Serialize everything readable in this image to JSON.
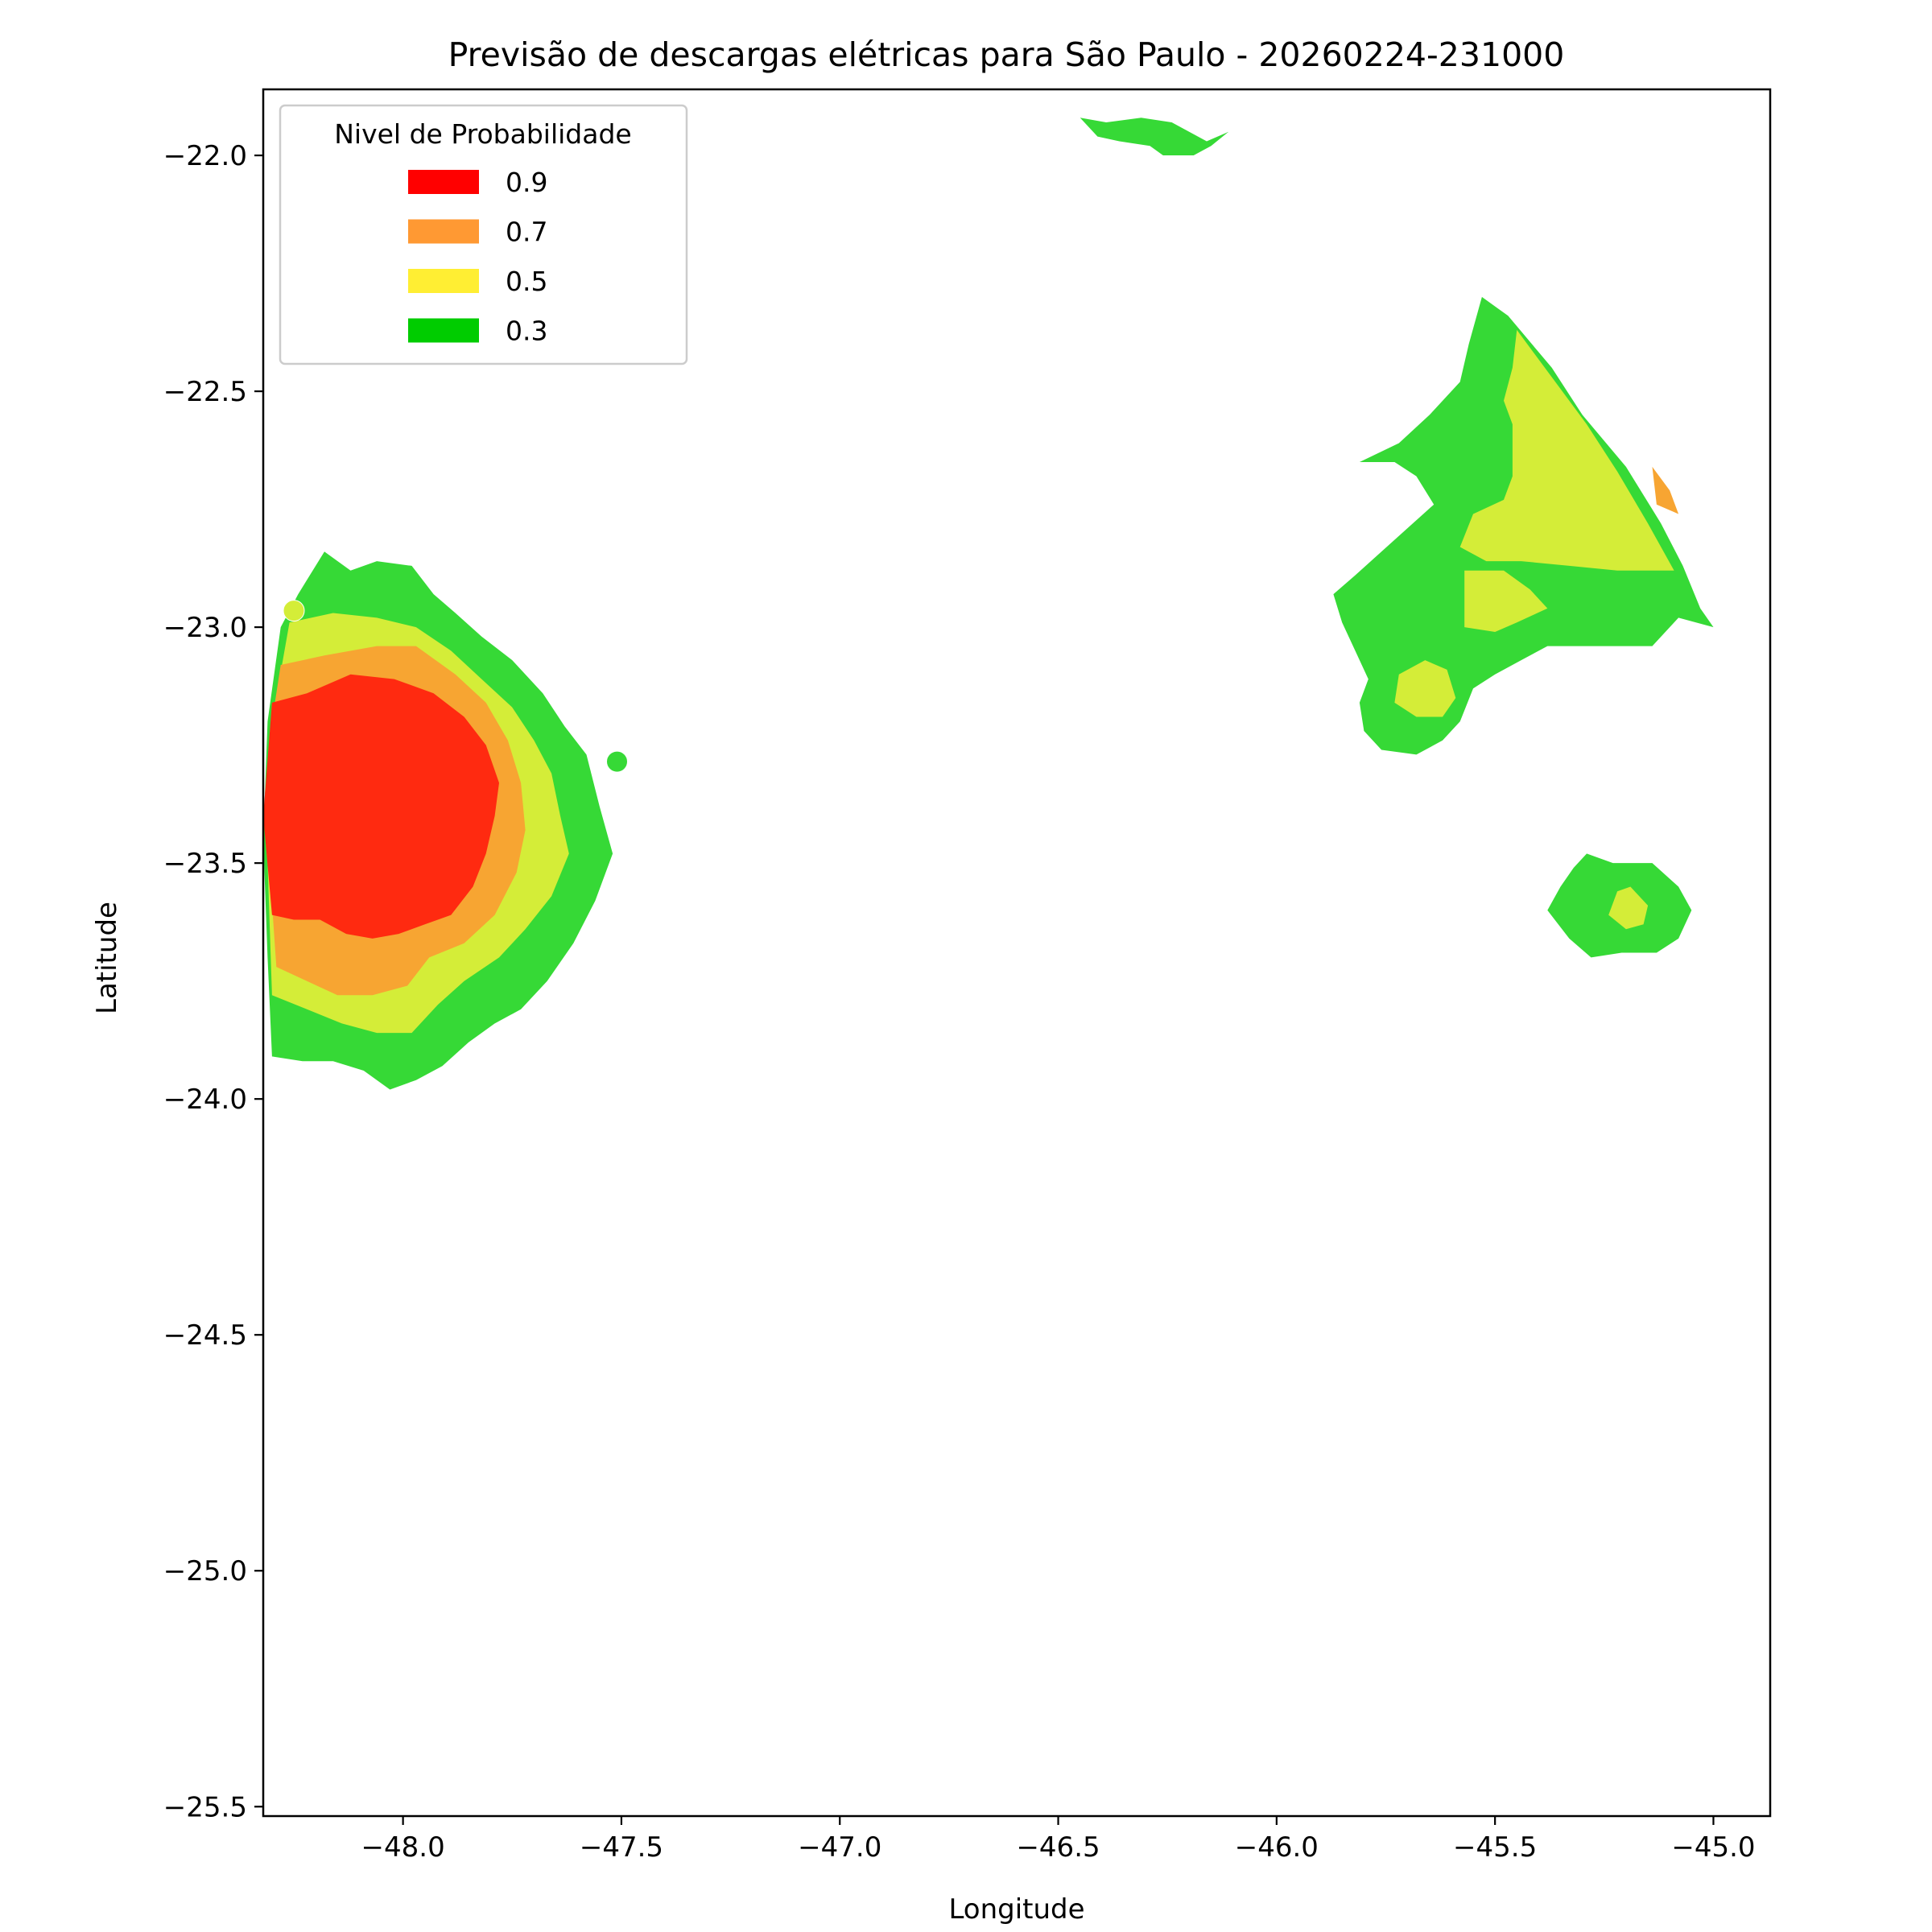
{
  "chart_data": {
    "type": "contourf",
    "title": "Previsão de descargas elétricas para São Paulo - 20260224-231000",
    "xlabel": "Longitude",
    "ylabel": "Latitude",
    "xlim": [
      -48.32,
      -44.87
    ],
    "ylim": [
      -25.52,
      -21.86
    ],
    "xticks": [
      -48.0,
      -47.5,
      -47.0,
      -46.5,
      -46.0,
      -45.5,
      -45.0
    ],
    "xtick_labels": [
      "−48.0",
      "−47.5",
      "−47.0",
      "−46.5",
      "−46.0",
      "−45.5",
      "−45.0"
    ],
    "yticks": [
      -22.0,
      -22.5,
      -23.0,
      -23.5,
      -24.0,
      -24.5,
      -25.0,
      -25.5
    ],
    "ytick_labels": [
      "−22.0",
      "−22.5",
      "−23.0",
      "−23.5",
      "−24.0",
      "−24.5",
      "−25.0",
      "−25.5"
    ],
    "grid": false,
    "legend": {
      "title": "Nivel de Probabilidade",
      "placement": "upper left",
      "entries": [
        {
          "label": "0.9",
          "color": "#ff0000"
        },
        {
          "label": "0.7",
          "color": "#ff9933"
        },
        {
          "label": "0.5",
          "color": "#ffee33"
        },
        {
          "label": "0.3",
          "color": "#00cc00"
        }
      ]
    },
    "fill_colors": {
      "0.3": "#36d936",
      "0.5": "#d4ed38",
      "0.7": "#f7a532",
      "0.9": "#ff2a10"
    },
    "regions": [
      {
        "level": "0.3",
        "points": [
          [
            -48.18,
            -22.84
          ],
          [
            -48.12,
            -22.88
          ],
          [
            -48.06,
            -22.86
          ],
          [
            -47.98,
            -22.87
          ],
          [
            -47.93,
            -22.93
          ],
          [
            -47.88,
            -22.97
          ],
          [
            -47.82,
            -23.02
          ],
          [
            -47.75,
            -23.07
          ],
          [
            -47.68,
            -23.14
          ],
          [
            -47.63,
            -23.21
          ],
          [
            -47.58,
            -23.27
          ],
          [
            -47.55,
            -23.38
          ],
          [
            -47.52,
            -23.48
          ],
          [
            -47.56,
            -23.58
          ],
          [
            -47.61,
            -23.67
          ],
          [
            -47.67,
            -23.75
          ],
          [
            -47.73,
            -23.81
          ],
          [
            -47.79,
            -23.84
          ],
          [
            -47.85,
            -23.88
          ],
          [
            -47.91,
            -23.93
          ],
          [
            -47.97,
            -23.96
          ],
          [
            -48.03,
            -23.98
          ],
          [
            -48.09,
            -23.94
          ],
          [
            -48.16,
            -23.92
          ],
          [
            -48.23,
            -23.92
          ],
          [
            -48.3,
            -23.91
          ],
          [
            -48.31,
            -23.7
          ],
          [
            -48.32,
            -23.45
          ],
          [
            -48.31,
            -23.2
          ],
          [
            -48.28,
            -23.0
          ],
          [
            -48.24,
            -22.93
          ]
        ]
      },
      {
        "level": "0.5",
        "points": [
          [
            -48.26,
            -22.99
          ],
          [
            -48.16,
            -22.97
          ],
          [
            -48.06,
            -22.98
          ],
          [
            -47.97,
            -23.0
          ],
          [
            -47.89,
            -23.05
          ],
          [
            -47.82,
            -23.11
          ],
          [
            -47.75,
            -23.17
          ],
          [
            -47.7,
            -23.24
          ],
          [
            -47.66,
            -23.31
          ],
          [
            -47.64,
            -23.4
          ],
          [
            -47.62,
            -23.48
          ],
          [
            -47.66,
            -23.57
          ],
          [
            -47.72,
            -23.64
          ],
          [
            -47.78,
            -23.7
          ],
          [
            -47.86,
            -23.75
          ],
          [
            -47.92,
            -23.8
          ],
          [
            -47.98,
            -23.86
          ],
          [
            -48.06,
            -23.86
          ],
          [
            -48.14,
            -23.84
          ],
          [
            -48.22,
            -23.81
          ],
          [
            -48.3,
            -23.78
          ],
          [
            -48.31,
            -23.5
          ],
          [
            -48.3,
            -23.2
          ]
        ]
      },
      {
        "level": "0.7",
        "points": [
          [
            -48.28,
            -23.08
          ],
          [
            -48.18,
            -23.06
          ],
          [
            -48.06,
            -23.04
          ],
          [
            -47.97,
            -23.04
          ],
          [
            -47.88,
            -23.1
          ],
          [
            -47.81,
            -23.16
          ],
          [
            -47.76,
            -23.24
          ],
          [
            -47.73,
            -23.33
          ],
          [
            -47.72,
            -23.43
          ],
          [
            -47.74,
            -23.52
          ],
          [
            -47.79,
            -23.61
          ],
          [
            -47.86,
            -23.67
          ],
          [
            -47.94,
            -23.7
          ],
          [
            -47.99,
            -23.76
          ],
          [
            -48.07,
            -23.78
          ],
          [
            -48.15,
            -23.78
          ],
          [
            -48.22,
            -23.75
          ],
          [
            -48.29,
            -23.72
          ],
          [
            -48.31,
            -23.45
          ],
          [
            -48.3,
            -23.2
          ]
        ]
      },
      {
        "level": "0.9",
        "points": [
          [
            -48.3,
            -23.16
          ],
          [
            -48.22,
            -23.14
          ],
          [
            -48.12,
            -23.1
          ],
          [
            -48.02,
            -23.11
          ],
          [
            -47.93,
            -23.14
          ],
          [
            -47.86,
            -23.19
          ],
          [
            -47.81,
            -23.25
          ],
          [
            -47.78,
            -23.33
          ],
          [
            -47.79,
            -23.4
          ],
          [
            -47.81,
            -23.48
          ],
          [
            -47.84,
            -23.55
          ],
          [
            -47.89,
            -23.61
          ],
          [
            -47.95,
            -23.63
          ],
          [
            -48.01,
            -23.65
          ],
          [
            -48.07,
            -23.66
          ],
          [
            -48.13,
            -23.65
          ],
          [
            -48.19,
            -23.62
          ],
          [
            -48.25,
            -23.62
          ],
          [
            -48.3,
            -23.61
          ],
          [
            -48.32,
            -23.4
          ]
        ]
      },
      {
        "level": "0.3",
        "points": [
          [
            -46.45,
            -21.92
          ],
          [
            -46.39,
            -21.93
          ],
          [
            -46.31,
            -21.92
          ],
          [
            -46.24,
            -21.93
          ],
          [
            -46.16,
            -21.97
          ],
          [
            -46.11,
            -21.95
          ],
          [
            -46.15,
            -21.98
          ],
          [
            -46.19,
            -22.0
          ],
          [
            -46.26,
            -22.0
          ],
          [
            -46.29,
            -21.98
          ],
          [
            -46.36,
            -21.97
          ],
          [
            -46.41,
            -21.96
          ]
        ]
      },
      {
        "level": "0.3",
        "points": [
          [
            -45.53,
            -22.3
          ],
          [
            -45.47,
            -22.34
          ],
          [
            -45.37,
            -22.45
          ],
          [
            -45.3,
            -22.55
          ],
          [
            -45.2,
            -22.66
          ],
          [
            -45.12,
            -22.78
          ],
          [
            -45.07,
            -22.87
          ],
          [
            -45.03,
            -22.96
          ],
          [
            -45.0,
            -23.0
          ],
          [
            -45.08,
            -22.98
          ],
          [
            -45.14,
            -23.04
          ],
          [
            -45.22,
            -23.04
          ],
          [
            -45.3,
            -23.04
          ],
          [
            -45.38,
            -23.04
          ],
          [
            -45.44,
            -23.07
          ],
          [
            -45.5,
            -23.1
          ],
          [
            -45.55,
            -23.13
          ],
          [
            -45.58,
            -23.2
          ],
          [
            -45.62,
            -23.24
          ],
          [
            -45.68,
            -23.27
          ],
          [
            -45.76,
            -23.26
          ],
          [
            -45.8,
            -23.22
          ],
          [
            -45.81,
            -23.16
          ],
          [
            -45.79,
            -23.11
          ],
          [
            -45.82,
            -23.05
          ],
          [
            -45.85,
            -22.99
          ],
          [
            -45.87,
            -22.93
          ],
          [
            -45.82,
            -22.89
          ],
          [
            -45.76,
            -22.84
          ],
          [
            -45.7,
            -22.79
          ],
          [
            -45.64,
            -22.74
          ],
          [
            -45.68,
            -22.68
          ],
          [
            -45.73,
            -22.65
          ],
          [
            -45.81,
            -22.65
          ],
          [
            -45.72,
            -22.61
          ],
          [
            -45.65,
            -22.55
          ],
          [
            -45.58,
            -22.48
          ],
          [
            -45.56,
            -22.4
          ]
        ]
      },
      {
        "level": "0.5",
        "points": [
          [
            -45.45,
            -22.37
          ],
          [
            -45.37,
            -22.47
          ],
          [
            -45.29,
            -22.57
          ],
          [
            -45.22,
            -22.67
          ],
          [
            -45.15,
            -22.78
          ],
          [
            -45.09,
            -22.88
          ],
          [
            -45.22,
            -22.88
          ],
          [
            -45.33,
            -22.87
          ],
          [
            -45.44,
            -22.86
          ],
          [
            -45.52,
            -22.86
          ],
          [
            -45.58,
            -22.83
          ],
          [
            -45.55,
            -22.76
          ],
          [
            -45.48,
            -22.73
          ],
          [
            -45.46,
            -22.68
          ],
          [
            -45.46,
            -22.57
          ],
          [
            -45.48,
            -22.52
          ],
          [
            -45.46,
            -22.45
          ]
        ]
      },
      {
        "level": "0.5",
        "points": [
          [
            -45.57,
            -22.88
          ],
          [
            -45.48,
            -22.88
          ],
          [
            -45.42,
            -22.92
          ],
          [
            -45.38,
            -22.96
          ],
          [
            -45.45,
            -22.99
          ],
          [
            -45.5,
            -23.01
          ],
          [
            -45.57,
            -23.0
          ]
        ]
      },
      {
        "level": "0.5",
        "points": [
          [
            -45.66,
            -23.07
          ],
          [
            -45.72,
            -23.1
          ],
          [
            -45.73,
            -23.16
          ],
          [
            -45.68,
            -23.19
          ],
          [
            -45.62,
            -23.19
          ],
          [
            -45.59,
            -23.15
          ],
          [
            -45.61,
            -23.09
          ]
        ]
      },
      {
        "level": "0.7",
        "points": [
          [
            -45.14,
            -22.66
          ],
          [
            -45.1,
            -22.71
          ],
          [
            -45.08,
            -22.76
          ],
          [
            -45.13,
            -22.74
          ]
        ]
      },
      {
        "level": "0.3",
        "points": [
          [
            -45.29,
            -23.48
          ],
          [
            -45.23,
            -23.5
          ],
          [
            -45.14,
            -23.5
          ],
          [
            -45.08,
            -23.55
          ],
          [
            -45.05,
            -23.6
          ],
          [
            -45.08,
            -23.66
          ],
          [
            -45.13,
            -23.69
          ],
          [
            -45.21,
            -23.69
          ],
          [
            -45.28,
            -23.7
          ],
          [
            -45.33,
            -23.66
          ],
          [
            -45.38,
            -23.6
          ],
          [
            -45.35,
            -23.55
          ],
          [
            -45.32,
            -23.51
          ]
        ]
      },
      {
        "level": "0.5",
        "points": [
          [
            -45.19,
            -23.55
          ],
          [
            -45.15,
            -23.59
          ],
          [
            -45.16,
            -23.63
          ],
          [
            -45.2,
            -23.64
          ],
          [
            -45.24,
            -23.61
          ],
          [
            -45.22,
            -23.56
          ]
        ]
      }
    ],
    "points": [
      {
        "lon": -48.25,
        "lat": -22.965,
        "level": "0.5"
      },
      {
        "lon": -47.51,
        "lat": -23.285,
        "level": "0.3"
      }
    ]
  }
}
